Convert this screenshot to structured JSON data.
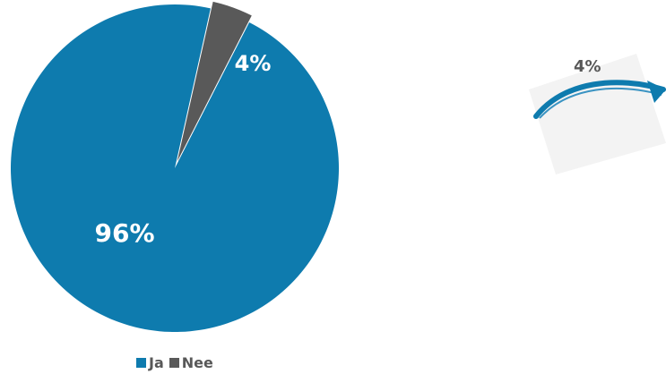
{
  "chart_data": {
    "type": "pie",
    "categories": [
      "Ja",
      "Nee"
    ],
    "values": [
      96,
      4
    ],
    "data_labels": [
      "96%",
      "4%"
    ],
    "colors": [
      "#0E7BAE",
      "#595959"
    ],
    "legend_position": "bottom"
  },
  "legend": {
    "items": [
      {
        "label": "Ja",
        "color": "#0E7BAE"
      },
      {
        "label": "Nee",
        "color": "#595959"
      }
    ]
  },
  "callout": {
    "label": "4%",
    "arrow_color": "#0E7BAE"
  }
}
